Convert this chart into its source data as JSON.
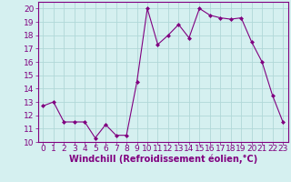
{
  "x": [
    0,
    1,
    2,
    3,
    4,
    5,
    6,
    7,
    8,
    9,
    10,
    11,
    12,
    13,
    14,
    15,
    16,
    17,
    18,
    19,
    20,
    21,
    22,
    23
  ],
  "y": [
    12.7,
    13.0,
    11.5,
    11.5,
    11.5,
    10.3,
    11.3,
    10.5,
    10.5,
    14.5,
    20.0,
    17.3,
    18.0,
    18.8,
    17.8,
    20.0,
    19.5,
    19.3,
    19.2,
    19.3,
    17.5,
    16.0,
    13.5,
    11.5
  ],
  "line_color": "#800080",
  "marker": "D",
  "marker_size": 2,
  "bg_color": "#d5f0f0",
  "grid_color": "#b0d8d8",
  "xlim": [
    -0.5,
    23.5
  ],
  "ylim": [
    10,
    20.5
  ],
  "yticks": [
    10,
    11,
    12,
    13,
    14,
    15,
    16,
    17,
    18,
    19,
    20
  ],
  "xticks": [
    0,
    1,
    2,
    3,
    4,
    5,
    6,
    7,
    8,
    9,
    10,
    11,
    12,
    13,
    14,
    15,
    16,
    17,
    18,
    19,
    20,
    21,
    22,
    23
  ],
  "xlabel": "Windchill (Refroidissement éolien,°C)",
  "xlabel_fontsize": 7,
  "tick_fontsize": 6.5,
  "tick_color": "#800080",
  "axis_color": "#800080"
}
